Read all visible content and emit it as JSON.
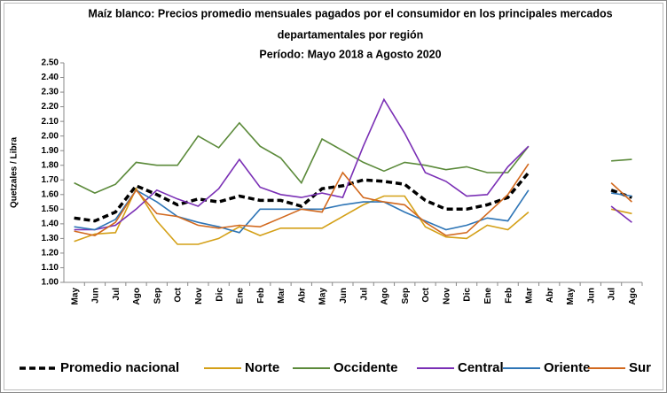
{
  "chart_data": {
    "type": "line",
    "title": [
      "Maíz blanco: Precios promedio mensuales pagados por el consumidor en los principales mercados",
      "departamentales por región"
    ],
    "subtitle": "Período: Mayo 2018 a Agosto 2020",
    "y_label": "Quetzales / Libra",
    "categories": [
      "May",
      "Jun",
      "Jul",
      "Ago",
      "Sep",
      "Oct",
      "Nov",
      "Dic",
      "Ene",
      "Feb",
      "Mar",
      "Abr",
      "May",
      "Jun",
      "Jul",
      "Ago",
      "Sep",
      "Oct",
      "Nov",
      "Dic",
      "Ene",
      "Feb",
      "Mar",
      "Abr",
      "May",
      "Jun",
      "Jul",
      "Ago"
    ],
    "ylim": [
      1.0,
      2.5
    ],
    "yticks": [
      {
        "value": 1.0,
        "label": "1.00"
      },
      {
        "value": 1.1,
        "label": "1.10"
      },
      {
        "value": 1.2,
        "label": "1.20"
      },
      {
        "value": 1.3,
        "label": "1.30"
      },
      {
        "value": 1.4,
        "label": "1.40"
      },
      {
        "value": 1.5,
        "label": "1.50"
      },
      {
        "value": 1.6,
        "label": "1.60"
      },
      {
        "value": 1.7,
        "label": "1.70"
      },
      {
        "value": 1.8,
        "label": "1.80"
      },
      {
        "value": 1.9,
        "label": "1.90"
      },
      {
        "value": 2.0,
        "label": "2.00"
      },
      {
        "value": 2.1,
        "label": "2.10"
      },
      {
        "value": 2.2,
        "label": "2.20"
      },
      {
        "value": 2.3,
        "label": "2.30"
      },
      {
        "value": 2.4,
        "label": "2.40"
      },
      {
        "value": 2.5,
        "label": "2.50"
      }
    ],
    "grid": false,
    "legend": "bottom",
    "series": [
      {
        "name": "Promedio nacional",
        "color": "#000000",
        "dashed": true,
        "values": [
          1.44,
          1.42,
          1.48,
          1.66,
          1.6,
          1.53,
          1.57,
          1.55,
          1.59,
          1.56,
          1.56,
          1.52,
          1.64,
          1.66,
          1.7,
          1.69,
          1.67,
          1.56,
          1.5,
          1.5,
          1.53,
          1.58,
          1.75,
          null,
          null,
          null,
          1.63,
          1.58
        ]
      },
      {
        "name": "Norte",
        "color": "#d4a017",
        "values": [
          1.28,
          1.33,
          1.34,
          1.64,
          1.42,
          1.26,
          1.26,
          1.3,
          1.38,
          1.32,
          1.37,
          1.37,
          1.37,
          1.45,
          1.53,
          1.59,
          1.59,
          1.38,
          1.31,
          1.3,
          1.39,
          1.36,
          1.48,
          null,
          null,
          null,
          1.5,
          1.47
        ]
      },
      {
        "name": "Occidente",
        "color": "#5b8a3a",
        "values": [
          1.68,
          1.61,
          1.67,
          1.82,
          1.8,
          1.8,
          2.0,
          1.92,
          2.09,
          1.93,
          1.85,
          1.68,
          1.98,
          1.9,
          1.82,
          1.76,
          1.82,
          1.8,
          1.77,
          1.79,
          1.75,
          1.75,
          1.93,
          null,
          null,
          null,
          1.83,
          1.84
        ]
      },
      {
        "name": "Central",
        "color": "#7a2fb5",
        "values": [
          1.36,
          1.36,
          1.39,
          1.5,
          1.63,
          1.57,
          1.52,
          1.64,
          1.84,
          1.65,
          1.6,
          1.58,
          1.61,
          1.58,
          1.93,
          2.25,
          2.02,
          1.75,
          1.69,
          1.59,
          1.6,
          1.79,
          1.93,
          null,
          null,
          null,
          1.52,
          1.41
        ]
      },
      {
        "name": "Oriente",
        "color": "#2e75b6",
        "values": [
          1.38,
          1.36,
          1.43,
          1.63,
          1.55,
          1.45,
          1.41,
          1.38,
          1.34,
          1.5,
          1.5,
          1.5,
          1.5,
          1.53,
          1.55,
          1.55,
          1.48,
          1.42,
          1.36,
          1.39,
          1.44,
          1.42,
          1.63,
          null,
          null,
          null,
          1.61,
          1.59
        ]
      },
      {
        "name": "Sur",
        "color": "#d2691e",
        "values": [
          1.35,
          1.32,
          1.41,
          1.63,
          1.47,
          1.45,
          1.39,
          1.37,
          1.39,
          1.38,
          1.44,
          1.5,
          1.48,
          1.75,
          1.58,
          1.55,
          1.53,
          1.41,
          1.32,
          1.34,
          1.47,
          1.6,
          1.81,
          null,
          null,
          null,
          1.68,
          1.55
        ]
      }
    ]
  }
}
